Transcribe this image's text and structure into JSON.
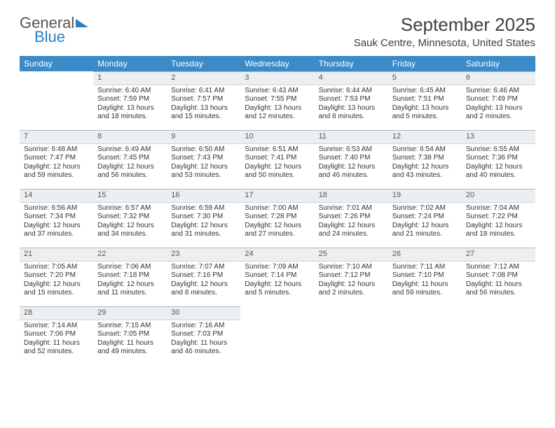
{
  "brand": {
    "part1": "General",
    "part2": "Blue"
  },
  "title": "September 2025",
  "location": "Sauk Centre, Minnesota, United States",
  "colors": {
    "header_bg": "#3b8bc8",
    "header_fg": "#ffffff",
    "daynum_bg": "#eceff1",
    "rule": "#aeb6bd",
    "text": "#333333",
    "brand_gray": "#6a6a6a",
    "brand_blue": "#2d7fc1"
  },
  "day_headers": [
    "Sunday",
    "Monday",
    "Tuesday",
    "Wednesday",
    "Thursday",
    "Friday",
    "Saturday"
  ],
  "weeks": [
    [
      {
        "n": "",
        "sr": "",
        "ss": "",
        "dl": ""
      },
      {
        "n": "1",
        "sr": "Sunrise: 6:40 AM",
        "ss": "Sunset: 7:59 PM",
        "dl": "Daylight: 13 hours and 18 minutes."
      },
      {
        "n": "2",
        "sr": "Sunrise: 6:41 AM",
        "ss": "Sunset: 7:57 PM",
        "dl": "Daylight: 13 hours and 15 minutes."
      },
      {
        "n": "3",
        "sr": "Sunrise: 6:43 AM",
        "ss": "Sunset: 7:55 PM",
        "dl": "Daylight: 13 hours and 12 minutes."
      },
      {
        "n": "4",
        "sr": "Sunrise: 6:44 AM",
        "ss": "Sunset: 7:53 PM",
        "dl": "Daylight: 13 hours and 8 minutes."
      },
      {
        "n": "5",
        "sr": "Sunrise: 6:45 AM",
        "ss": "Sunset: 7:51 PM",
        "dl": "Daylight: 13 hours and 5 minutes."
      },
      {
        "n": "6",
        "sr": "Sunrise: 6:46 AM",
        "ss": "Sunset: 7:49 PM",
        "dl": "Daylight: 13 hours and 2 minutes."
      }
    ],
    [
      {
        "n": "7",
        "sr": "Sunrise: 6:48 AM",
        "ss": "Sunset: 7:47 PM",
        "dl": "Daylight: 12 hours and 59 minutes."
      },
      {
        "n": "8",
        "sr": "Sunrise: 6:49 AM",
        "ss": "Sunset: 7:45 PM",
        "dl": "Daylight: 12 hours and 56 minutes."
      },
      {
        "n": "9",
        "sr": "Sunrise: 6:50 AM",
        "ss": "Sunset: 7:43 PM",
        "dl": "Daylight: 12 hours and 53 minutes."
      },
      {
        "n": "10",
        "sr": "Sunrise: 6:51 AM",
        "ss": "Sunset: 7:41 PM",
        "dl": "Daylight: 12 hours and 50 minutes."
      },
      {
        "n": "11",
        "sr": "Sunrise: 6:53 AM",
        "ss": "Sunset: 7:40 PM",
        "dl": "Daylight: 12 hours and 46 minutes."
      },
      {
        "n": "12",
        "sr": "Sunrise: 6:54 AM",
        "ss": "Sunset: 7:38 PM",
        "dl": "Daylight: 12 hours and 43 minutes."
      },
      {
        "n": "13",
        "sr": "Sunrise: 6:55 AM",
        "ss": "Sunset: 7:36 PM",
        "dl": "Daylight: 12 hours and 40 minutes."
      }
    ],
    [
      {
        "n": "14",
        "sr": "Sunrise: 6:56 AM",
        "ss": "Sunset: 7:34 PM",
        "dl": "Daylight: 12 hours and 37 minutes."
      },
      {
        "n": "15",
        "sr": "Sunrise: 6:57 AM",
        "ss": "Sunset: 7:32 PM",
        "dl": "Daylight: 12 hours and 34 minutes."
      },
      {
        "n": "16",
        "sr": "Sunrise: 6:59 AM",
        "ss": "Sunset: 7:30 PM",
        "dl": "Daylight: 12 hours and 31 minutes."
      },
      {
        "n": "17",
        "sr": "Sunrise: 7:00 AM",
        "ss": "Sunset: 7:28 PM",
        "dl": "Daylight: 12 hours and 27 minutes."
      },
      {
        "n": "18",
        "sr": "Sunrise: 7:01 AM",
        "ss": "Sunset: 7:26 PM",
        "dl": "Daylight: 12 hours and 24 minutes."
      },
      {
        "n": "19",
        "sr": "Sunrise: 7:02 AM",
        "ss": "Sunset: 7:24 PM",
        "dl": "Daylight: 12 hours and 21 minutes."
      },
      {
        "n": "20",
        "sr": "Sunrise: 7:04 AM",
        "ss": "Sunset: 7:22 PM",
        "dl": "Daylight: 12 hours and 18 minutes."
      }
    ],
    [
      {
        "n": "21",
        "sr": "Sunrise: 7:05 AM",
        "ss": "Sunset: 7:20 PM",
        "dl": "Daylight: 12 hours and 15 minutes."
      },
      {
        "n": "22",
        "sr": "Sunrise: 7:06 AM",
        "ss": "Sunset: 7:18 PM",
        "dl": "Daylight: 12 hours and 11 minutes."
      },
      {
        "n": "23",
        "sr": "Sunrise: 7:07 AM",
        "ss": "Sunset: 7:16 PM",
        "dl": "Daylight: 12 hours and 8 minutes."
      },
      {
        "n": "24",
        "sr": "Sunrise: 7:09 AM",
        "ss": "Sunset: 7:14 PM",
        "dl": "Daylight: 12 hours and 5 minutes."
      },
      {
        "n": "25",
        "sr": "Sunrise: 7:10 AM",
        "ss": "Sunset: 7:12 PM",
        "dl": "Daylight: 12 hours and 2 minutes."
      },
      {
        "n": "26",
        "sr": "Sunrise: 7:11 AM",
        "ss": "Sunset: 7:10 PM",
        "dl": "Daylight: 11 hours and 59 minutes."
      },
      {
        "n": "27",
        "sr": "Sunrise: 7:12 AM",
        "ss": "Sunset: 7:08 PM",
        "dl": "Daylight: 11 hours and 56 minutes."
      }
    ],
    [
      {
        "n": "28",
        "sr": "Sunrise: 7:14 AM",
        "ss": "Sunset: 7:06 PM",
        "dl": "Daylight: 11 hours and 52 minutes."
      },
      {
        "n": "29",
        "sr": "Sunrise: 7:15 AM",
        "ss": "Sunset: 7:05 PM",
        "dl": "Daylight: 11 hours and 49 minutes."
      },
      {
        "n": "30",
        "sr": "Sunrise: 7:16 AM",
        "ss": "Sunset: 7:03 PM",
        "dl": "Daylight: 11 hours and 46 minutes."
      },
      {
        "n": "",
        "sr": "",
        "ss": "",
        "dl": ""
      },
      {
        "n": "",
        "sr": "",
        "ss": "",
        "dl": ""
      },
      {
        "n": "",
        "sr": "",
        "ss": "",
        "dl": ""
      },
      {
        "n": "",
        "sr": "",
        "ss": "",
        "dl": ""
      }
    ]
  ]
}
